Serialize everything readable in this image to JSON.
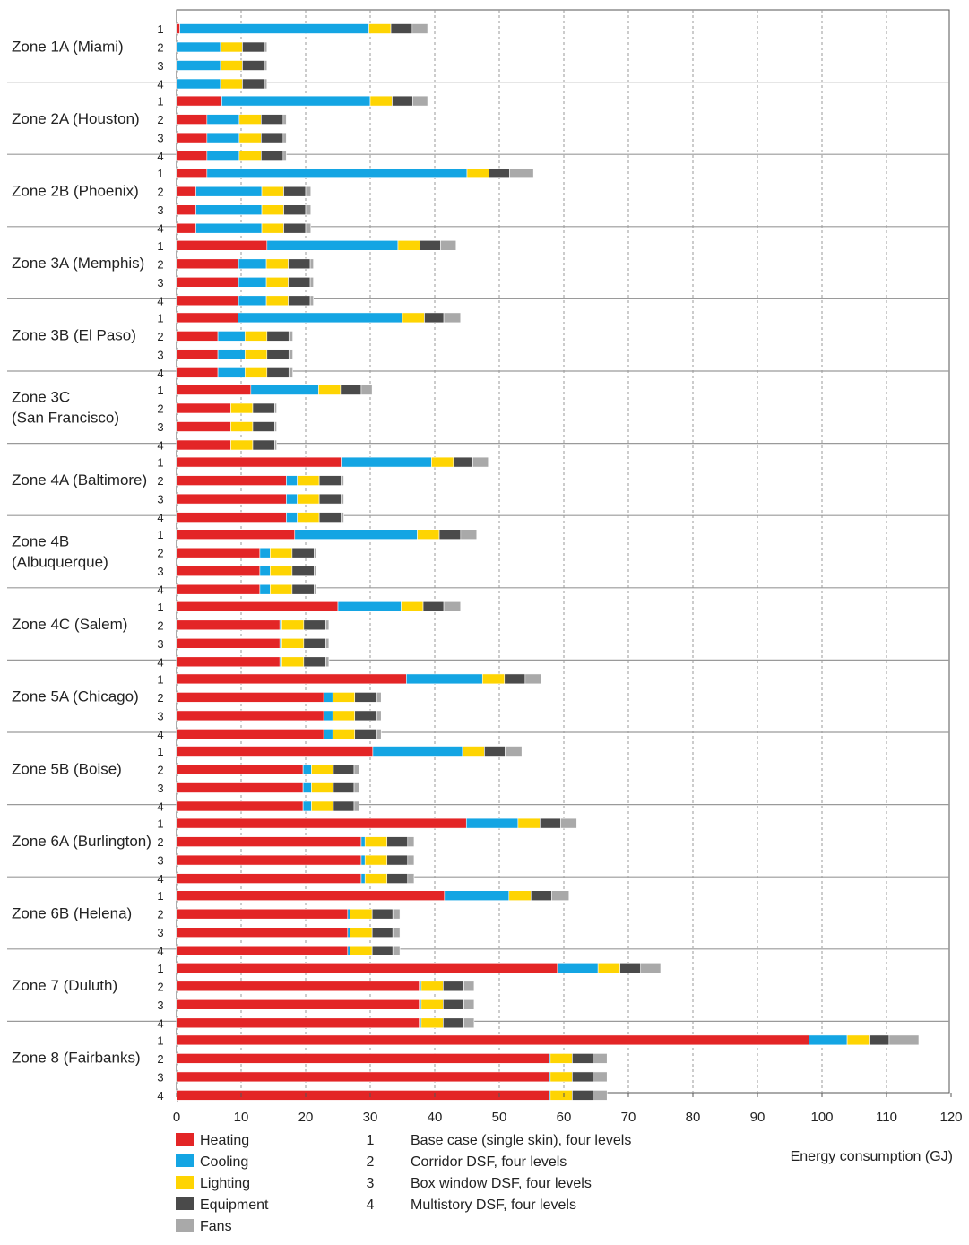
{
  "chart_data": {
    "type": "bar",
    "orientation": "horizontal",
    "stacked": true,
    "xlabel": "Energy consumption (GJ)",
    "xlim": [
      0,
      120
    ],
    "xticks": [
      "0",
      "10",
      "20",
      "30",
      "40",
      "50",
      "60",
      "70",
      "80",
      "90",
      "100",
      "110",
      "120"
    ],
    "grid": "vertical dashed",
    "legend_position": "bottom-left",
    "series": [
      {
        "name": "Heating",
        "color": "#e32526"
      },
      {
        "name": "Cooling",
        "color": "#14a5e3"
      },
      {
        "name": "Lighting",
        "color": "#fed402"
      },
      {
        "name": "Equipment",
        "color": "#4a4a4a"
      },
      {
        "name": "Fans",
        "color": "#a9a9a9"
      }
    ],
    "case_legend": [
      {
        "num": "1",
        "label": "Base case (single skin), four levels"
      },
      {
        "num": "2",
        "label": "Corridor DSF, four levels"
      },
      {
        "num": "3",
        "label": "Box window DSF, four levels"
      },
      {
        "num": "4",
        "label": "Multistory DSF, four levels"
      }
    ],
    "groups": [
      {
        "zone": "Zone 1A (Miami)",
        "bars": [
          {
            "case": "1",
            "values": [
              0.5,
              29.3,
              3.4,
              3.3,
              2.4
            ]
          },
          {
            "case": "2",
            "values": [
              0,
              6.8,
              3.4,
              3.4,
              0.4
            ]
          },
          {
            "case": "3",
            "values": [
              0,
              6.8,
              3.4,
              3.4,
              0.4
            ]
          },
          {
            "case": "4",
            "values": [
              0,
              6.8,
              3.4,
              3.4,
              0.4
            ]
          }
        ]
      },
      {
        "zone": "Zone 2A (Houston)",
        "bars": [
          {
            "case": "1",
            "values": [
              7.0,
              23.0,
              3.4,
              3.2,
              2.3
            ]
          },
          {
            "case": "2",
            "values": [
              4.7,
              5.0,
              3.4,
              3.4,
              0.5
            ]
          },
          {
            "case": "3",
            "values": [
              4.7,
              5.0,
              3.4,
              3.4,
              0.5
            ]
          },
          {
            "case": "4",
            "values": [
              4.7,
              5.0,
              3.4,
              3.4,
              0.5
            ]
          }
        ]
      },
      {
        "zone": "Zone 2B (Phoenix)",
        "bars": [
          {
            "case": "1",
            "values": [
              4.7,
              40.3,
              3.4,
              3.2,
              3.7
            ]
          },
          {
            "case": "2",
            "values": [
              3.0,
              10.2,
              3.4,
              3.4,
              0.8
            ]
          },
          {
            "case": "3",
            "values": [
              3.0,
              10.2,
              3.4,
              3.4,
              0.8
            ]
          },
          {
            "case": "4",
            "values": [
              3.0,
              10.2,
              3.4,
              3.4,
              0.8
            ]
          }
        ]
      },
      {
        "zone": "Zone 3A (Memphis)",
        "bars": [
          {
            "case": "1",
            "values": [
              14.0,
              20.3,
              3.4,
              3.2,
              2.4
            ]
          },
          {
            "case": "2",
            "values": [
              9.6,
              4.3,
              3.4,
              3.4,
              0.5
            ]
          },
          {
            "case": "3",
            "values": [
              9.6,
              4.3,
              3.4,
              3.4,
              0.5
            ]
          },
          {
            "case": "4",
            "values": [
              9.6,
              4.3,
              3.4,
              3.4,
              0.5
            ]
          }
        ]
      },
      {
        "zone": "Zone 3B (El Paso)",
        "bars": [
          {
            "case": "1",
            "values": [
              9.5,
              25.5,
              3.4,
              3.0,
              2.6
            ]
          },
          {
            "case": "2",
            "values": [
              6.4,
              4.2,
              3.4,
              3.4,
              0.6
            ]
          },
          {
            "case": "3",
            "values": [
              6.4,
              4.2,
              3.4,
              3.4,
              0.6
            ]
          },
          {
            "case": "4",
            "values": [
              6.4,
              4.2,
              3.4,
              3.4,
              0.6
            ]
          }
        ]
      },
      {
        "zone": "Zone 3C (San Francisco)",
        "bars": [
          {
            "case": "1",
            "values": [
              11.5,
              10.5,
              3.4,
              3.2,
              1.7
            ]
          },
          {
            "case": "2",
            "values": [
              8.4,
              0,
              3.4,
              3.4,
              0.3
            ]
          },
          {
            "case": "3",
            "values": [
              8.4,
              0,
              3.4,
              3.4,
              0.3
            ]
          },
          {
            "case": "4",
            "values": [
              8.4,
              0,
              3.4,
              3.4,
              0.3
            ]
          }
        ]
      },
      {
        "zone": "Zone 4A (Baltimore)",
        "bars": [
          {
            "case": "1",
            "values": [
              25.5,
              14.0,
              3.4,
              3.0,
              2.4
            ]
          },
          {
            "case": "2",
            "values": [
              17.0,
              1.7,
              3.4,
              3.4,
              0.4
            ]
          },
          {
            "case": "3",
            "values": [
              17.0,
              1.7,
              3.4,
              3.4,
              0.4
            ]
          },
          {
            "case": "4",
            "values": [
              17.0,
              1.7,
              3.4,
              3.4,
              0.4
            ]
          }
        ]
      },
      {
        "zone": "Zone 4B (Albuquerque)",
        "bars": [
          {
            "case": "1",
            "values": [
              18.3,
              19.0,
              3.4,
              3.3,
              2.5
            ]
          },
          {
            "case": "2",
            "values": [
              12.9,
              1.6,
              3.4,
              3.4,
              0.4
            ]
          },
          {
            "case": "3",
            "values": [
              12.9,
              1.6,
              3.4,
              3.4,
              0.4
            ]
          },
          {
            "case": "4",
            "values": [
              12.9,
              1.6,
              3.4,
              3.4,
              0.4
            ]
          }
        ]
      },
      {
        "zone": "Zone 4C (Salem)",
        "bars": [
          {
            "case": "1",
            "values": [
              25.0,
              9.8,
              3.4,
              3.2,
              2.6
            ]
          },
          {
            "case": "2",
            "values": [
              16.0,
              0.3,
              3.4,
              3.4,
              0.5
            ]
          },
          {
            "case": "3",
            "values": [
              16.0,
              0.3,
              3.4,
              3.4,
              0.5
            ]
          },
          {
            "case": "4",
            "values": [
              16.0,
              0.3,
              3.4,
              3.4,
              0.5
            ]
          }
        ]
      },
      {
        "zone": "Zone 5A (Chicago)",
        "bars": [
          {
            "case": "1",
            "values": [
              35.6,
              11.8,
              3.4,
              3.2,
              2.5
            ]
          },
          {
            "case": "2",
            "values": [
              22.8,
              1.4,
              3.4,
              3.4,
              0.7
            ]
          },
          {
            "case": "3",
            "values": [
              22.8,
              1.4,
              3.4,
              3.4,
              0.7
            ]
          },
          {
            "case": "4",
            "values": [
              22.8,
              1.4,
              3.4,
              3.4,
              0.7
            ]
          }
        ]
      },
      {
        "zone": "Zone 5B (Boise)",
        "bars": [
          {
            "case": "1",
            "values": [
              30.4,
              13.9,
              3.4,
              3.2,
              2.6
            ]
          },
          {
            "case": "2",
            "values": [
              19.6,
              1.3,
              3.4,
              3.2,
              0.8
            ]
          },
          {
            "case": "3",
            "values": [
              19.6,
              1.3,
              3.4,
              3.2,
              0.8
            ]
          },
          {
            "case": "4",
            "values": [
              19.6,
              1.3,
              3.4,
              3.2,
              0.8
            ]
          }
        ]
      },
      {
        "zone": "Zone 6A (Burlington)",
        "bars": [
          {
            "case": "1",
            "values": [
              44.9,
              8.0,
              3.4,
              3.2,
              2.5
            ]
          },
          {
            "case": "2",
            "values": [
              28.6,
              0.6,
              3.4,
              3.2,
              1.0
            ]
          },
          {
            "case": "3",
            "values": [
              28.6,
              0.6,
              3.4,
              3.2,
              1.0
            ]
          },
          {
            "case": "4",
            "values": [
              28.6,
              0.6,
              3.4,
              3.2,
              1.0
            ]
          }
        ]
      },
      {
        "zone": "Zone 6B (Helena)",
        "bars": [
          {
            "case": "1",
            "values": [
              41.5,
              10.0,
              3.4,
              3.2,
              2.7
            ]
          },
          {
            "case": "2",
            "values": [
              26.5,
              0.4,
              3.4,
              3.2,
              1.1
            ]
          },
          {
            "case": "3",
            "values": [
              26.5,
              0.4,
              3.4,
              3.2,
              1.1
            ]
          },
          {
            "case": "4",
            "values": [
              26.5,
              0.4,
              3.4,
              3.2,
              1.1
            ]
          }
        ]
      },
      {
        "zone": "Zone 7 (Duluth)",
        "bars": [
          {
            "case": "1",
            "values": [
              59.0,
              6.3,
              3.4,
              3.2,
              3.1
            ]
          },
          {
            "case": "2",
            "values": [
              37.6,
              0.3,
              3.4,
              3.2,
              1.6
            ]
          },
          {
            "case": "3",
            "values": [
              37.6,
              0.3,
              3.4,
              3.2,
              1.6
            ]
          },
          {
            "case": "4",
            "values": [
              37.6,
              0.3,
              3.4,
              3.2,
              1.6
            ]
          }
        ]
      },
      {
        "zone": "Zone 8 (Fairbanks)",
        "bars": [
          {
            "case": "1",
            "values": [
              98.0,
              5.9,
              3.4,
              3.1,
              4.6
            ]
          },
          {
            "case": "2",
            "values": [
              57.7,
              0.2,
              3.4,
              3.2,
              2.2
            ]
          },
          {
            "case": "3",
            "values": [
              57.7,
              0.2,
              3.4,
              3.2,
              2.2
            ]
          },
          {
            "case": "4",
            "values": [
              57.7,
              0.2,
              3.4,
              3.2,
              2.2
            ]
          }
        ]
      }
    ]
  }
}
